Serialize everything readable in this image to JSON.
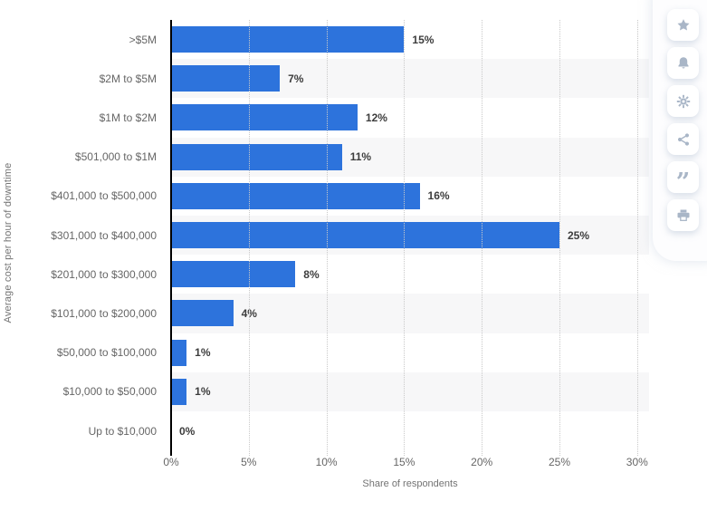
{
  "chart_data": {
    "type": "bar",
    "orientation": "horizontal",
    "title": "",
    "categories": [
      ">$5M",
      "$2M to $5M",
      "$1M to $2M",
      "$501,000 to $1M",
      "$401,000 to $500,000",
      "$301,000 to $400,000",
      "$201,000 to $300,000",
      "$101,000 to $200,000",
      "$50,000 to $100,000",
      "$10,000 to $50,000",
      "Up to $10,000"
    ],
    "values": [
      15,
      7,
      12,
      11,
      16,
      25,
      8,
      4,
      1,
      1,
      0
    ],
    "value_labels": [
      "15%",
      "7%",
      "12%",
      "11%",
      "16%",
      "25%",
      "8%",
      "4%",
      "1%",
      "1%",
      "0%"
    ],
    "xlabel": "Share of respondents",
    "ylabel": "Average cost per hour of downtime",
    "xlim": [
      0,
      30
    ],
    "xticks": [
      0,
      5,
      10,
      15,
      20,
      25,
      30
    ],
    "xtick_labels": [
      "0%",
      "5%",
      "10%",
      "15%",
      "20%",
      "25%",
      "30%"
    ],
    "grid": "vertical-dotted",
    "legend": "none",
    "bar_color": "#2d73dc",
    "row_band_color": "#f7f7f8",
    "axis_line_color": "#000000"
  },
  "toolbar": {
    "icon_color": "#a9b6c7",
    "quote_glyph": "”",
    "buttons": [
      {
        "id": "favorite",
        "icon": "star-icon"
      },
      {
        "id": "notifications",
        "icon": "bell-icon"
      },
      {
        "id": "settings",
        "icon": "gear-icon"
      },
      {
        "id": "share",
        "icon": "share-icon"
      },
      {
        "id": "cite",
        "icon": "quote-icon"
      },
      {
        "id": "print",
        "icon": "print-icon"
      }
    ]
  }
}
